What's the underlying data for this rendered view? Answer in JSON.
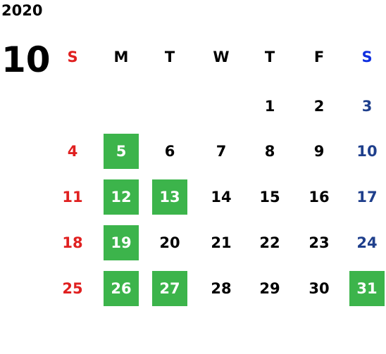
{
  "year": "2020",
  "month": "10",
  "colors": {
    "sunday": "#e02020",
    "saturday": "#1f3f8c",
    "saturday_header": "#1030e0",
    "highlight_bg": "#3cb44b",
    "highlight_text": "#ffffff"
  },
  "weekdays": [
    "S",
    "M",
    "T",
    "W",
    "T",
    "F",
    "S"
  ],
  "weeks": [
    [
      {
        "day": ""
      },
      {
        "day": ""
      },
      {
        "day": ""
      },
      {
        "day": ""
      },
      {
        "day": "1"
      },
      {
        "day": "2"
      },
      {
        "day": "3"
      }
    ],
    [
      {
        "day": "4"
      },
      {
        "day": "5",
        "highlight": true
      },
      {
        "day": "6"
      },
      {
        "day": "7"
      },
      {
        "day": "8"
      },
      {
        "day": "9"
      },
      {
        "day": "10"
      }
    ],
    [
      {
        "day": "11"
      },
      {
        "day": "12",
        "highlight": true
      },
      {
        "day": "13",
        "highlight": true
      },
      {
        "day": "14"
      },
      {
        "day": "15"
      },
      {
        "day": "16"
      },
      {
        "day": "17"
      }
    ],
    [
      {
        "day": "18"
      },
      {
        "day": "19",
        "highlight": true
      },
      {
        "day": "20"
      },
      {
        "day": "21"
      },
      {
        "day": "22"
      },
      {
        "day": "23"
      },
      {
        "day": "24"
      }
    ],
    [
      {
        "day": "25"
      },
      {
        "day": "26",
        "highlight": true
      },
      {
        "day": "27",
        "highlight": true
      },
      {
        "day": "28"
      },
      {
        "day": "29"
      },
      {
        "day": "30"
      },
      {
        "day": "31",
        "highlight": true
      }
    ]
  ]
}
